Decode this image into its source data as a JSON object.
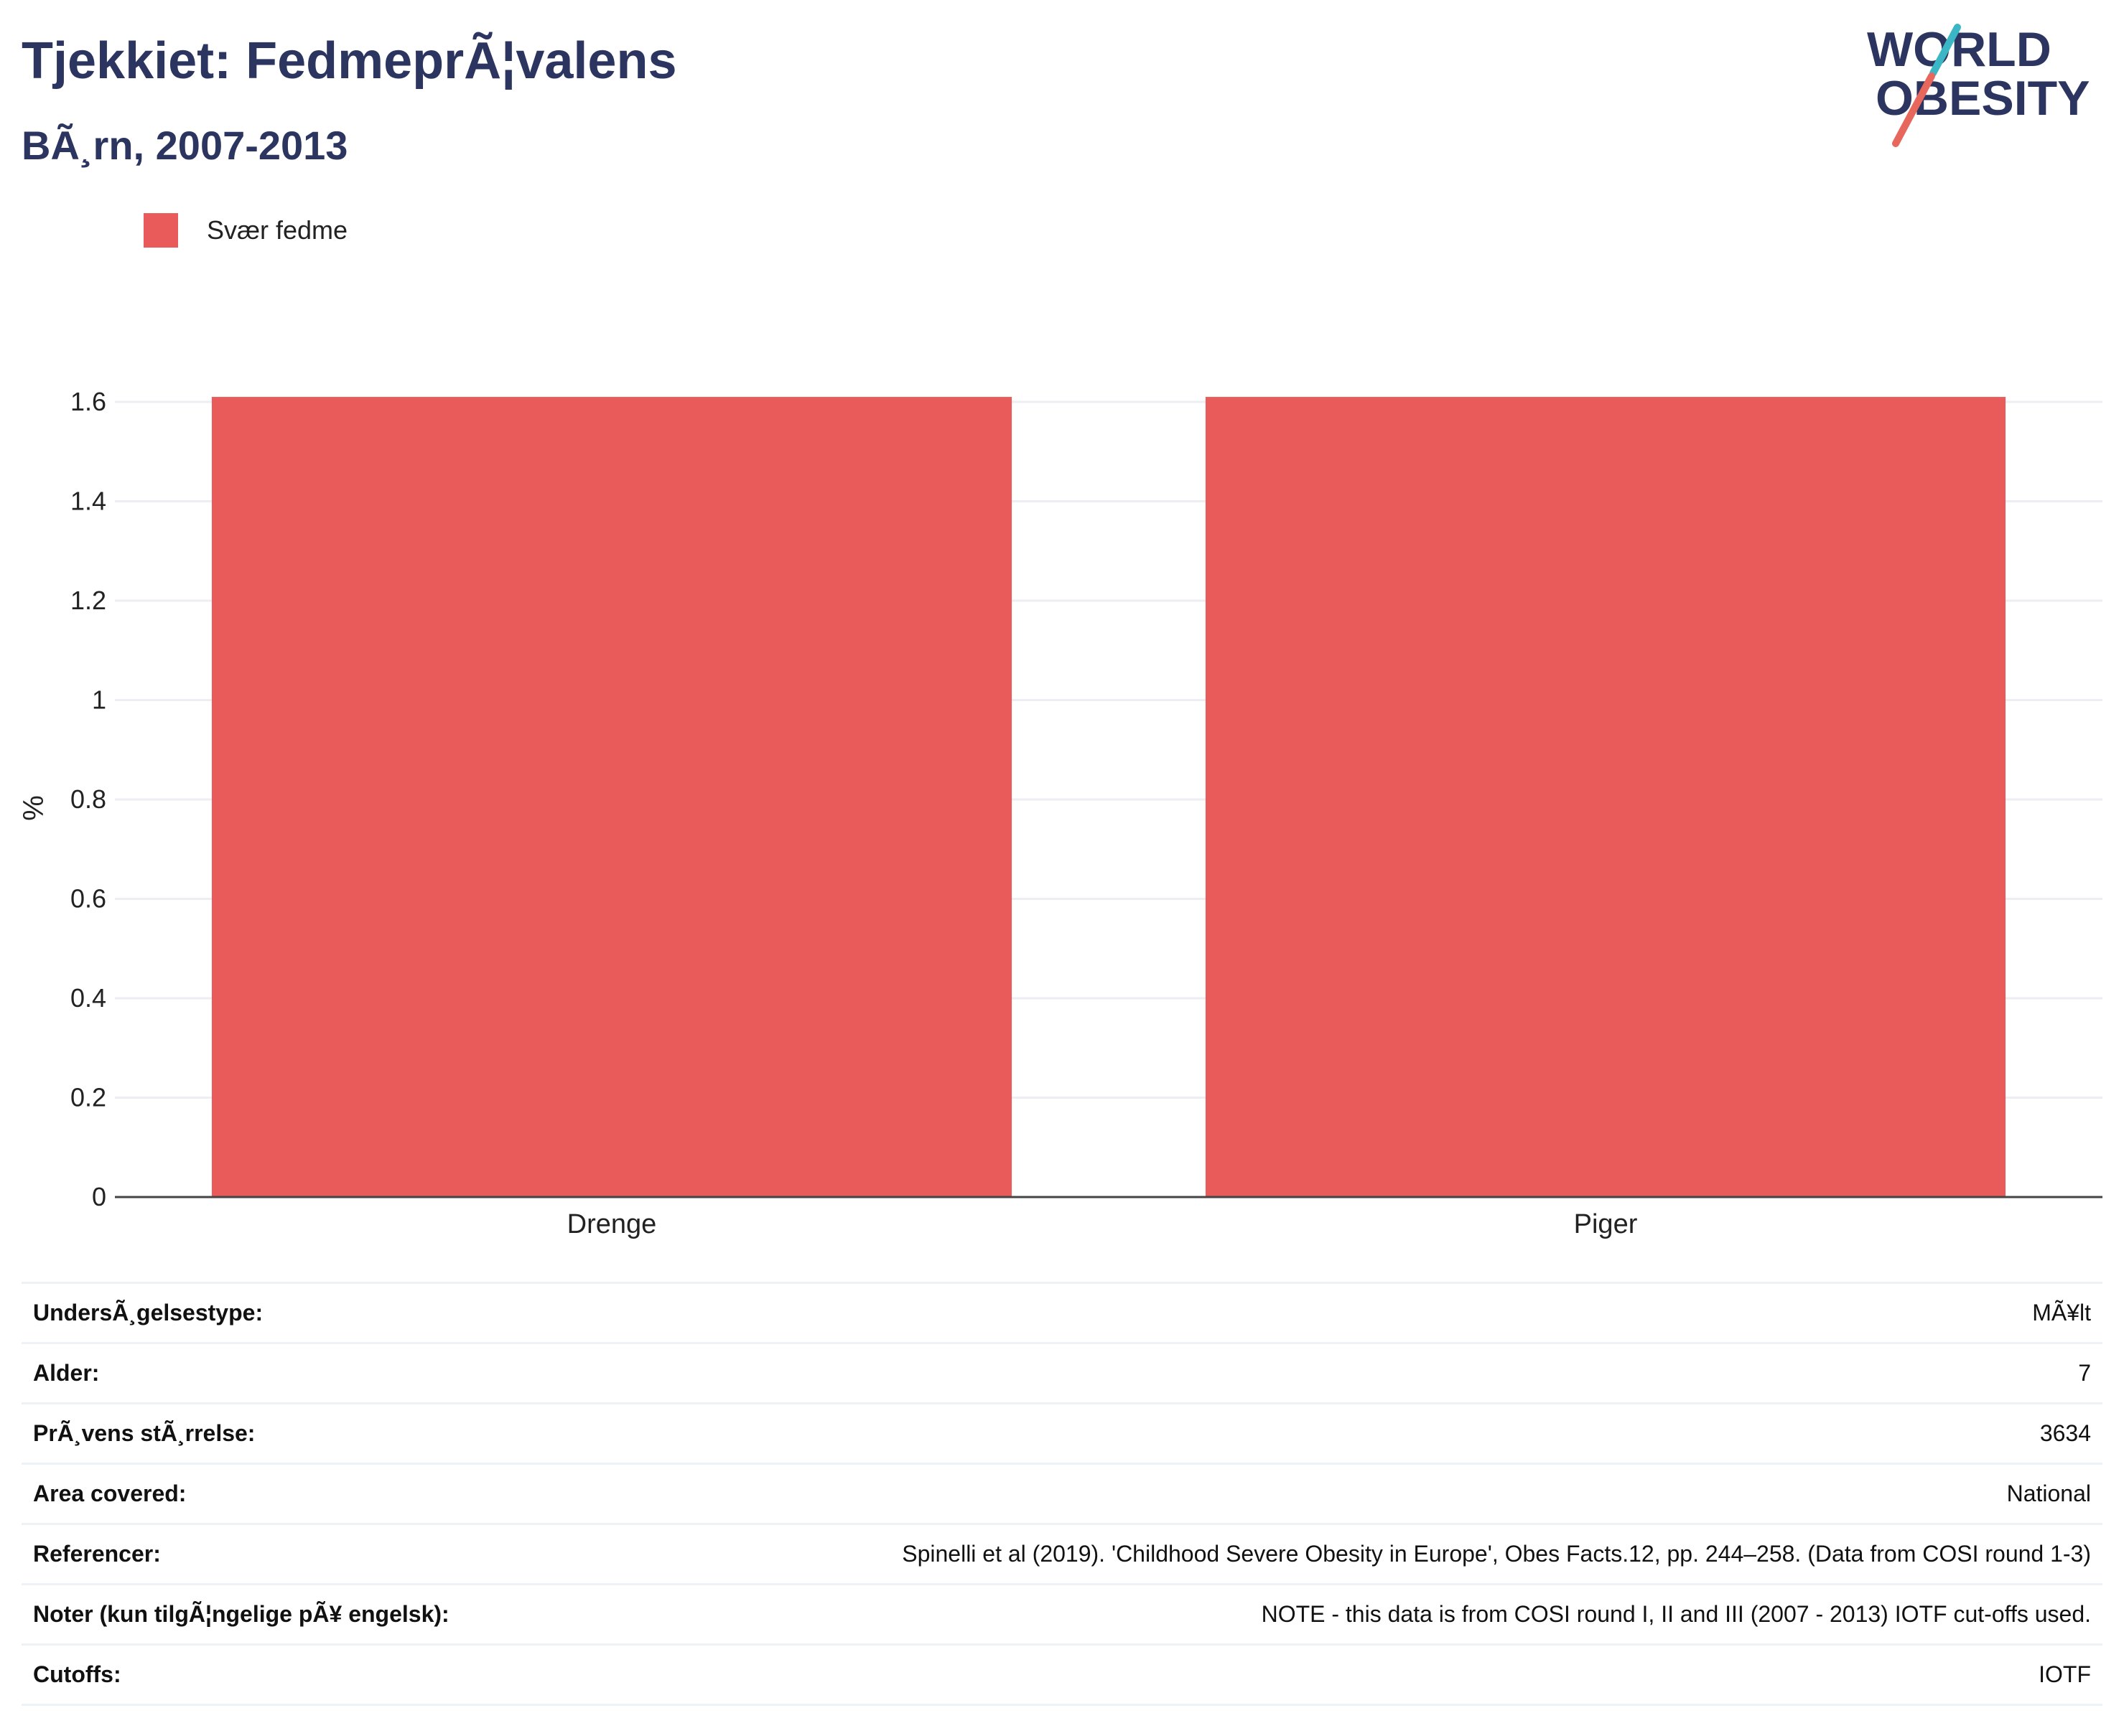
{
  "header": {
    "title": "Tjekkiet: FedmeprÃ¦valens",
    "subtitle": "BÃ¸rn, 2007-2013"
  },
  "logo": {
    "line1": "WORLD",
    "line2": "OBESITY",
    "text_color": "#2b3560",
    "slash_colors": [
      "#3bb6c4",
      "#e8675d"
    ]
  },
  "legend": {
    "items": [
      {
        "label": "Svær fedme",
        "color": "#e95b5b"
      }
    ]
  },
  "chart_data": {
    "type": "bar",
    "categories": [
      "Drenge",
      "Piger"
    ],
    "series": [
      {
        "name": "Svær fedme",
        "values": [
          1.61,
          1.61
        ],
        "color": "#e95b5b"
      }
    ],
    "ylabel": "%",
    "xlabel": "",
    "ylim": [
      0,
      1.6
    ],
    "yticks": [
      0,
      0.2,
      0.4,
      0.6,
      0.8,
      1,
      1.2,
      1.4,
      1.6
    ],
    "ytick_labels": [
      "0",
      "0.2",
      "0.4",
      "0.6",
      "0.8",
      "1",
      "1.2",
      "1.4",
      "1.6"
    ],
    "grid": true,
    "legend_position": "top-left"
  },
  "info_table": [
    {
      "label": "UndersÃ¸gelsestype:",
      "value": "MÃ¥lt"
    },
    {
      "label": "Alder:",
      "value": "7"
    },
    {
      "label": "PrÃ¸vens stÃ¸rrelse:",
      "value": "3634"
    },
    {
      "label": "Area covered:",
      "value": "National"
    },
    {
      "label": "Referencer:",
      "value": "Spinelli et al (2019). 'Childhood Severe Obesity in Europe', Obes Facts.12, pp. 244–258. (Data from COSI round 1-3)"
    },
    {
      "label": "Noter (kun tilgÃ¦ngelige pÃ¥ engelsk):",
      "value": "NOTE - this data is from COSI round I, II and III (2007 - 2013) IOTF cut-offs used."
    },
    {
      "label": "Cutoffs:",
      "value": "IOTF"
    }
  ]
}
